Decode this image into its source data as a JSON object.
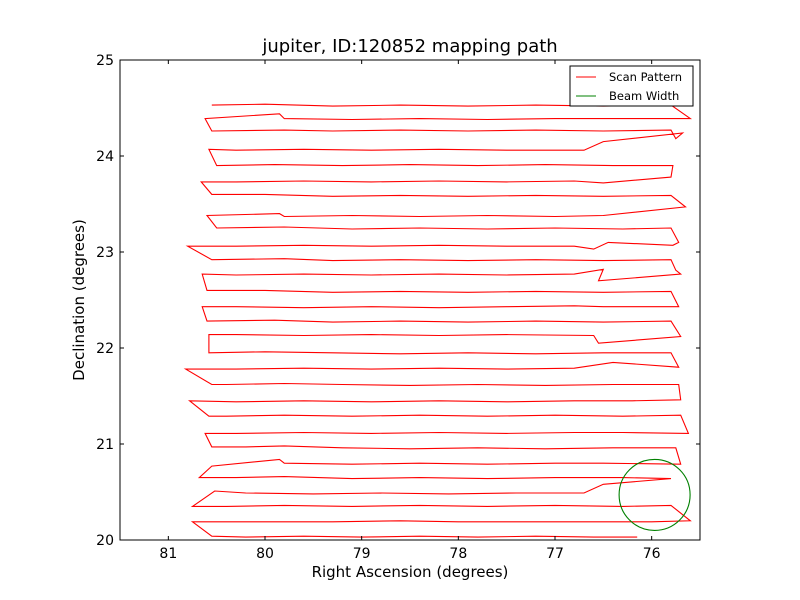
{
  "chart_data": {
    "type": "line",
    "title": "jupiter, ID:120852 mapping path",
    "xlabel": "Right Ascension (degrees)",
    "ylabel": "Declination (degrees)",
    "xlim": [
      81.5,
      75.5
    ],
    "ylim": [
      20,
      25
    ],
    "x_ticks": [
      81,
      80,
      79,
      78,
      77,
      76
    ],
    "x_tick_labels": [
      "81",
      "80",
      "79",
      "78",
      "77",
      "76"
    ],
    "y_ticks": [
      20,
      21,
      22,
      23,
      24,
      25
    ],
    "y_tick_labels": [
      "20",
      "21",
      "22",
      "23",
      "24",
      "25"
    ],
    "grid": false,
    "legend": {
      "placement": "top-right",
      "entries": [
        {
          "label": "Scan Pattern",
          "color": "#ff0000",
          "kind": "line"
        },
        {
          "label": "Beam Width",
          "color": "#008000",
          "kind": "line"
        }
      ]
    },
    "series": [
      {
        "name": "Scan Pattern",
        "color": "#ff0000",
        "points": [
          [
            76.15,
            20.03
          ],
          [
            76.6,
            20.03
          ],
          [
            77.2,
            20.04
          ],
          [
            77.8,
            20.03
          ],
          [
            78.4,
            20.04
          ],
          [
            79.0,
            20.03
          ],
          [
            79.6,
            20.04
          ],
          [
            80.2,
            20.03
          ],
          [
            80.55,
            20.04
          ],
          [
            80.75,
            20.19
          ],
          [
            80.55,
            20.19
          ],
          [
            80.0,
            20.19
          ],
          [
            79.3,
            20.19
          ],
          [
            78.6,
            20.2
          ],
          [
            78.0,
            20.19
          ],
          [
            77.3,
            20.19
          ],
          [
            76.6,
            20.19
          ],
          [
            76.0,
            20.19
          ],
          [
            75.6,
            20.2
          ],
          [
            75.8,
            20.36
          ],
          [
            76.3,
            20.35
          ],
          [
            77.0,
            20.36
          ],
          [
            77.7,
            20.35
          ],
          [
            78.4,
            20.36
          ],
          [
            79.1,
            20.35
          ],
          [
            79.8,
            20.36
          ],
          [
            80.4,
            20.35
          ],
          [
            80.75,
            20.35
          ],
          [
            80.52,
            20.51
          ],
          [
            80.2,
            20.49
          ],
          [
            79.5,
            20.48
          ],
          [
            78.8,
            20.49
          ],
          [
            78.1,
            20.48
          ],
          [
            77.4,
            20.49
          ],
          [
            76.7,
            20.49
          ],
          [
            76.5,
            20.58
          ],
          [
            75.8,
            20.64
          ],
          [
            76.3,
            20.65
          ],
          [
            77.0,
            20.65
          ],
          [
            77.7,
            20.64
          ],
          [
            78.4,
            20.65
          ],
          [
            79.1,
            20.64
          ],
          [
            79.8,
            20.66
          ],
          [
            80.3,
            20.65
          ],
          [
            80.68,
            20.65
          ],
          [
            80.55,
            20.77
          ],
          [
            79.85,
            20.84
          ],
          [
            79.8,
            20.8
          ],
          [
            79.1,
            20.79
          ],
          [
            78.4,
            20.8
          ],
          [
            77.7,
            20.79
          ],
          [
            77.0,
            20.8
          ],
          [
            76.5,
            20.8
          ],
          [
            75.7,
            20.79
          ],
          [
            75.75,
            20.96
          ],
          [
            76.4,
            20.96
          ],
          [
            77.1,
            20.95
          ],
          [
            77.8,
            20.96
          ],
          [
            78.5,
            20.95
          ],
          [
            79.2,
            20.96
          ],
          [
            79.8,
            20.98
          ],
          [
            80.2,
            20.97
          ],
          [
            80.55,
            20.97
          ],
          [
            80.62,
            21.11
          ],
          [
            80.3,
            21.11
          ],
          [
            79.6,
            21.12
          ],
          [
            78.9,
            21.11
          ],
          [
            78.2,
            21.12
          ],
          [
            77.5,
            21.11
          ],
          [
            76.8,
            21.12
          ],
          [
            76.3,
            21.12
          ],
          [
            75.62,
            21.11
          ],
          [
            75.7,
            21.3
          ],
          [
            76.3,
            21.29
          ],
          [
            77.0,
            21.3
          ],
          [
            77.7,
            21.29
          ],
          [
            78.4,
            21.3
          ],
          [
            79.1,
            21.29
          ],
          [
            79.8,
            21.3
          ],
          [
            80.4,
            21.29
          ],
          [
            80.58,
            21.29
          ],
          [
            80.78,
            21.45
          ],
          [
            80.3,
            21.44
          ],
          [
            79.6,
            21.45
          ],
          [
            78.9,
            21.44
          ],
          [
            78.2,
            21.45
          ],
          [
            77.5,
            21.44
          ],
          [
            76.8,
            21.45
          ],
          [
            76.2,
            21.45
          ],
          [
            75.7,
            21.46
          ],
          [
            75.72,
            21.62
          ],
          [
            76.4,
            21.62
          ],
          [
            77.1,
            21.61
          ],
          [
            77.8,
            21.62
          ],
          [
            78.5,
            21.61
          ],
          [
            79.2,
            21.62
          ],
          [
            79.8,
            21.63
          ],
          [
            80.4,
            21.62
          ],
          [
            80.55,
            21.62
          ],
          [
            80.82,
            21.78
          ],
          [
            80.3,
            21.78
          ],
          [
            79.6,
            21.79
          ],
          [
            78.9,
            21.78
          ],
          [
            78.2,
            21.79
          ],
          [
            77.5,
            21.78
          ],
          [
            76.8,
            21.79
          ],
          [
            76.4,
            21.85
          ],
          [
            75.72,
            21.8
          ],
          [
            75.8,
            21.95
          ],
          [
            76.5,
            21.95
          ],
          [
            77.2,
            21.94
          ],
          [
            77.9,
            21.95
          ],
          [
            78.6,
            21.94
          ],
          [
            79.3,
            21.95
          ],
          [
            80.0,
            21.96
          ],
          [
            80.58,
            21.95
          ],
          [
            80.58,
            22.14
          ],
          [
            80.3,
            22.14
          ],
          [
            79.6,
            22.13
          ],
          [
            78.9,
            22.14
          ],
          [
            78.2,
            22.13
          ],
          [
            77.5,
            22.14
          ],
          [
            76.6,
            22.13
          ],
          [
            76.55,
            22.05
          ],
          [
            75.7,
            22.12
          ],
          [
            75.8,
            22.28
          ],
          [
            76.5,
            22.27
          ],
          [
            77.2,
            22.28
          ],
          [
            77.9,
            22.27
          ],
          [
            78.6,
            22.28
          ],
          [
            79.3,
            22.27
          ],
          [
            79.9,
            22.29
          ],
          [
            80.6,
            22.28
          ],
          [
            80.65,
            22.43
          ],
          [
            80.3,
            22.43
          ],
          [
            79.6,
            22.42
          ],
          [
            78.9,
            22.43
          ],
          [
            78.2,
            22.42
          ],
          [
            77.5,
            22.43
          ],
          [
            76.8,
            22.44
          ],
          [
            76.5,
            22.43
          ],
          [
            75.72,
            22.43
          ],
          [
            75.8,
            22.59
          ],
          [
            76.5,
            22.58
          ],
          [
            77.2,
            22.59
          ],
          [
            77.9,
            22.58
          ],
          [
            78.6,
            22.59
          ],
          [
            79.3,
            22.58
          ],
          [
            80.0,
            22.6
          ],
          [
            80.6,
            22.6
          ],
          [
            80.65,
            22.77
          ],
          [
            80.3,
            22.76
          ],
          [
            79.6,
            22.77
          ],
          [
            78.9,
            22.76
          ],
          [
            78.2,
            22.77
          ],
          [
            77.5,
            22.76
          ],
          [
            76.8,
            22.77
          ],
          [
            76.5,
            22.82
          ],
          [
            76.55,
            22.7
          ],
          [
            75.7,
            22.77
          ],
          [
            75.75,
            22.81
          ],
          [
            75.8,
            22.92
          ],
          [
            76.5,
            22.91
          ],
          [
            77.2,
            22.92
          ],
          [
            77.9,
            22.91
          ],
          [
            78.6,
            22.92
          ],
          [
            79.3,
            22.91
          ],
          [
            79.8,
            22.93
          ],
          [
            80.55,
            22.92
          ],
          [
            80.8,
            23.06
          ],
          [
            80.3,
            23.06
          ],
          [
            79.6,
            23.07
          ],
          [
            78.9,
            23.06
          ],
          [
            78.2,
            23.07
          ],
          [
            77.5,
            23.06
          ],
          [
            76.8,
            23.06
          ],
          [
            76.6,
            23.03
          ],
          [
            76.45,
            23.1
          ],
          [
            75.78,
            23.07
          ],
          [
            75.72,
            23.1
          ],
          [
            75.8,
            23.25
          ],
          [
            76.3,
            23.24
          ],
          [
            77.0,
            23.25
          ],
          [
            77.7,
            23.24
          ],
          [
            78.4,
            23.25
          ],
          [
            79.1,
            23.24
          ],
          [
            79.8,
            23.26
          ],
          [
            80.5,
            23.25
          ],
          [
            80.6,
            23.38
          ],
          [
            79.85,
            23.4
          ],
          [
            79.8,
            23.37
          ],
          [
            79.1,
            23.38
          ],
          [
            78.4,
            23.37
          ],
          [
            77.7,
            23.38
          ],
          [
            77.0,
            23.37
          ],
          [
            76.5,
            23.38
          ],
          [
            75.65,
            23.47
          ],
          [
            75.8,
            23.59
          ],
          [
            76.5,
            23.58
          ],
          [
            77.2,
            23.59
          ],
          [
            77.9,
            23.58
          ],
          [
            78.6,
            23.59
          ],
          [
            79.3,
            23.58
          ],
          [
            80.0,
            23.6
          ],
          [
            80.55,
            23.6
          ],
          [
            80.66,
            23.73
          ],
          [
            80.3,
            23.73
          ],
          [
            79.6,
            23.74
          ],
          [
            78.9,
            23.73
          ],
          [
            78.2,
            23.74
          ],
          [
            77.5,
            23.73
          ],
          [
            76.8,
            23.74
          ],
          [
            76.5,
            23.72
          ],
          [
            75.8,
            23.78
          ],
          [
            75.78,
            23.9
          ],
          [
            76.4,
            23.9
          ],
          [
            77.1,
            23.91
          ],
          [
            77.8,
            23.9
          ],
          [
            78.5,
            23.91
          ],
          [
            79.2,
            23.9
          ],
          [
            79.9,
            23.91
          ],
          [
            80.5,
            23.9
          ],
          [
            80.58,
            24.07
          ],
          [
            80.3,
            24.06
          ],
          [
            79.6,
            24.07
          ],
          [
            78.9,
            24.06
          ],
          [
            78.2,
            24.07
          ],
          [
            77.5,
            24.06
          ],
          [
            76.7,
            24.06
          ],
          [
            76.5,
            24.15
          ],
          [
            75.68,
            24.24
          ],
          [
            75.75,
            24.18
          ],
          [
            75.8,
            24.27
          ],
          [
            76.5,
            24.26
          ],
          [
            77.2,
            24.27
          ],
          [
            77.9,
            24.26
          ],
          [
            78.6,
            24.27
          ],
          [
            79.3,
            24.26
          ],
          [
            79.8,
            24.27
          ],
          [
            80.55,
            24.26
          ],
          [
            80.62,
            24.39
          ],
          [
            79.85,
            24.44
          ],
          [
            79.8,
            24.39
          ],
          [
            79.1,
            24.38
          ],
          [
            78.4,
            24.39
          ],
          [
            77.7,
            24.38
          ],
          [
            77.0,
            24.39
          ],
          [
            76.4,
            24.39
          ],
          [
            75.6,
            24.39
          ],
          [
            75.8,
            24.53
          ],
          [
            76.5,
            24.52
          ],
          [
            77.2,
            24.53
          ],
          [
            77.9,
            24.52
          ],
          [
            78.6,
            24.53
          ],
          [
            79.3,
            24.52
          ],
          [
            80.0,
            24.54
          ],
          [
            80.55,
            24.53
          ]
        ]
      }
    ],
    "beam_width": {
      "name": "Beam Width",
      "color": "#008000",
      "center_ra": 75.97,
      "center_dec": 20.47,
      "radius_deg": 0.37
    }
  }
}
